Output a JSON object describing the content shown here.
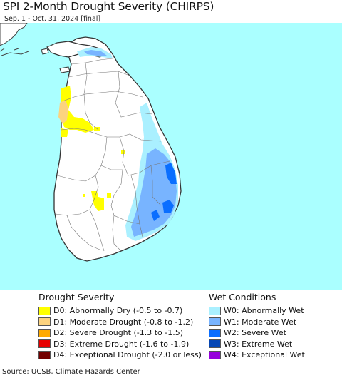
{
  "header": {
    "title": "SPI 2-Month Drought Severity (CHIRPS)",
    "subtitle": "Sep. 1 - Oct. 31, 2024 [final]"
  },
  "map": {
    "ocean_color": "#aaffff",
    "land_color": "#ffffff",
    "border_color": "#777777"
  },
  "legend_drought": {
    "title": "Drought Severity",
    "items": [
      {
        "code": "D0",
        "label": "D0: Abnormally Dry (-0.5 to -0.7)",
        "color": "#ffff00"
      },
      {
        "code": "D1",
        "label": "D1: Moderate Drought (-0.8 to -1.2)",
        "color": "#fcd37f"
      },
      {
        "code": "D2",
        "label": "D2: Severe Drought (-1.3 to -1.5)",
        "color": "#ffaa00"
      },
      {
        "code": "D3",
        "label": "D3: Extreme Drought (-1.6 to -1.9)",
        "color": "#e60000"
      },
      {
        "code": "D4",
        "label": "D4: Exceptional Drought (-2.0 or less)",
        "color": "#730000"
      }
    ]
  },
  "legend_wet": {
    "title": "Wet Conditions",
    "items": [
      {
        "code": "W0",
        "label": "W0: Abnormally Wet",
        "color": "#aaf0ff"
      },
      {
        "code": "W1",
        "label": "W1: Moderate Wet",
        "color": "#78b4ff"
      },
      {
        "code": "W2",
        "label": "W2: Severe Wet",
        "color": "#0a6eff"
      },
      {
        "code": "W3",
        "label": "W3: Extreme Wet",
        "color": "#0546b4"
      },
      {
        "code": "W4",
        "label": "W4: Exceptional Wet",
        "color": "#9600dc"
      }
    ]
  },
  "footer": {
    "source": "Source: UCSB, Climate Hazards Center"
  }
}
